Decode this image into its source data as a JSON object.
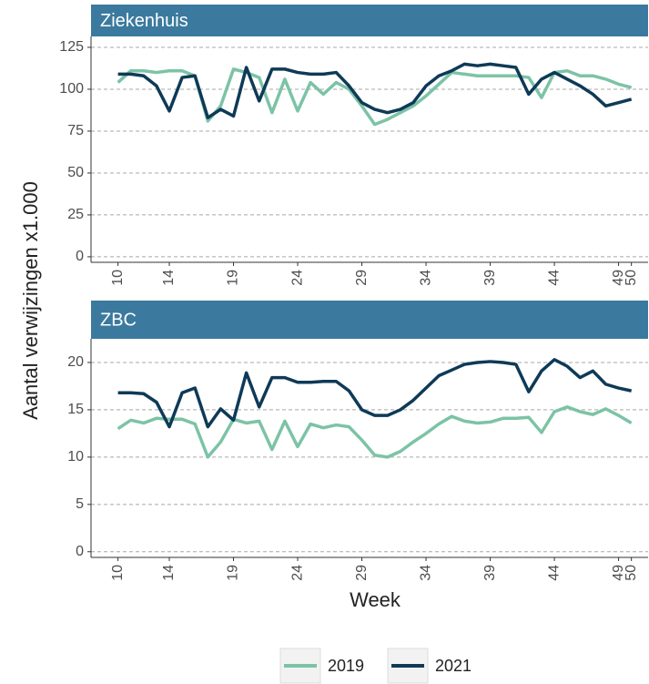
{
  "y_label": "Aantal verwijzingen x1.000",
  "x_label": "Week",
  "chart_data": [
    {
      "type": "line",
      "title": "Ziekenhuis",
      "x": [
        10,
        11,
        12,
        13,
        14,
        15,
        16,
        17,
        18,
        19,
        20,
        21,
        22,
        23,
        24,
        25,
        26,
        27,
        28,
        29,
        30,
        31,
        32,
        33,
        34,
        35,
        36,
        37,
        38,
        39,
        40,
        41,
        42,
        43,
        44,
        45,
        46,
        47,
        48,
        49,
        50
      ],
      "series": [
        {
          "name": "2019",
          "color": "#7cc3a6",
          "values": [
            104,
            111,
            111,
            110,
            111,
            111,
            108,
            81,
            90,
            112,
            110,
            107,
            86,
            106,
            87,
            104,
            97,
            104,
            100,
            90,
            79,
            82,
            86,
            90,
            96,
            103,
            110,
            109,
            108,
            108,
            108,
            108,
            107,
            95,
            110,
            111,
            108,
            108,
            106,
            103,
            101
          ]
        },
        {
          "name": "2021",
          "color": "#0e3a57",
          "values": [
            109,
            109,
            108,
            102,
            87,
            107,
            108,
            83,
            88,
            84,
            113,
            93,
            112,
            112,
            110,
            109,
            109,
            110,
            102,
            92,
            88,
            86,
            88,
            92,
            102,
            108,
            111,
            115,
            114,
            115,
            114,
            113,
            97,
            106,
            110,
            106,
            102,
            97,
            90,
            92,
            94
          ]
        }
      ],
      "xlim": [
        7.9,
        51.3
      ],
      "ylim": [
        -3.3,
        131.5
      ],
      "xticks": [
        10,
        14,
        19,
        24,
        29,
        34,
        39,
        44,
        49,
        50
      ],
      "yticks": [
        0,
        25,
        50,
        75,
        100,
        125
      ],
      "grid": true
    },
    {
      "type": "line",
      "title": "ZBC",
      "x": [
        10,
        11,
        12,
        13,
        14,
        15,
        16,
        17,
        18,
        19,
        20,
        21,
        22,
        23,
        24,
        25,
        26,
        27,
        28,
        29,
        30,
        31,
        32,
        33,
        34,
        35,
        36,
        37,
        38,
        39,
        40,
        41,
        42,
        43,
        44,
        45,
        46,
        47,
        48,
        49,
        50
      ],
      "series": [
        {
          "color": "#7cc3a6",
          "values": [
            13.0,
            13.9,
            13.6,
            14.1,
            14.0,
            14.0,
            13.5,
            10.0,
            11.6,
            14.0,
            13.6,
            13.8,
            10.8,
            13.8,
            11.1,
            13.5,
            13.1,
            13.4,
            13.2,
            11.8,
            10.2,
            10.0,
            10.6,
            11.6,
            12.5,
            13.5,
            14.3,
            13.8,
            13.6,
            13.7,
            14.1,
            14.1,
            14.2,
            12.6,
            14.8,
            15.3,
            14.8,
            14.5,
            15.1,
            14.4,
            13.6
          ]
        },
        {
          "color": "#0e3a57",
          "values": [
            16.8,
            16.8,
            16.7,
            15.8,
            13.2,
            16.8,
            17.3,
            13.2,
            15.1,
            13.9,
            18.9,
            15.3,
            18.4,
            18.4,
            17.9,
            17.9,
            18.0,
            18.0,
            17.0,
            15.0,
            14.4,
            14.4,
            15.0,
            16.0,
            17.3,
            18.6,
            19.2,
            19.8,
            20.0,
            20.1,
            20.0,
            19.8,
            16.9,
            19.1,
            20.3,
            19.6,
            18.4,
            19.1,
            17.7,
            17.3,
            17.0
          ]
        }
      ],
      "xlim": [
        7.9,
        51.3
      ],
      "ylim": [
        -0.6,
        22.5
      ],
      "xticks": [
        10,
        14,
        19,
        24,
        29,
        34,
        39,
        44,
        49,
        50
      ],
      "yticks": [
        0,
        5,
        10,
        15,
        20
      ],
      "grid": true
    }
  ]
}
